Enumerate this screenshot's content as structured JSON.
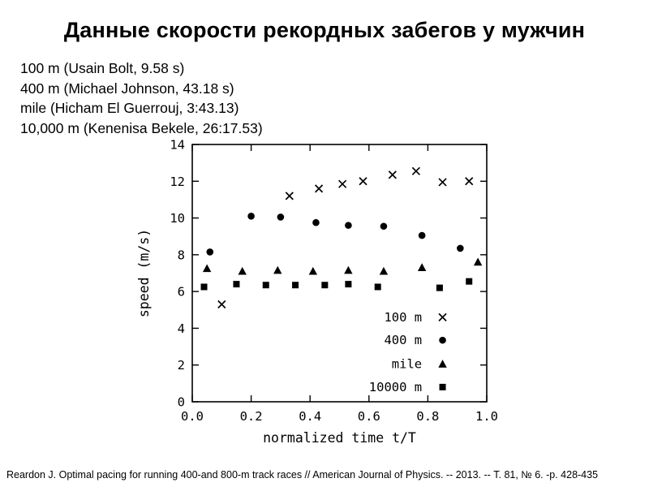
{
  "slide": {
    "title": "Данные скорости рекордных забегов у мужчин",
    "annotations": [
      "100 m (Usain Bolt, 9.58 s)",
      "400 m (Michael Johnson, 43.18 s)",
      "mile (Hicham El Guerrouj, 3:43.13)",
      "10,000 m (Kenenisa Bekele, 26:17.53)"
    ],
    "citation": "Reardon J. Optimal pacing for running 400-and 800-m track races // American Journal of Physics. -- 2013. -- Т. 81, № 6. -p. 428-435"
  },
  "chart_data": {
    "type": "scatter",
    "title": "",
    "xlabel": "normalized time t/T",
    "ylabel": "speed (m/s)",
    "xlim": [
      0.0,
      1.0
    ],
    "ylim": [
      0,
      14
    ],
    "x_ticks": [
      0.0,
      0.2,
      0.4,
      0.6,
      0.8,
      1.0
    ],
    "x_tick_labels": [
      "0.0",
      "0.2",
      "0.4",
      "0.6",
      "0.8",
      "1.0"
    ],
    "y_ticks": [
      0,
      2,
      4,
      6,
      8,
      10,
      12,
      14
    ],
    "y_tick_labels": [
      "0",
      "2",
      "4",
      "6",
      "8",
      "10",
      "12",
      "14"
    ],
    "grid": false,
    "legend_position": "inside bottom-right",
    "marker_color": "#000000",
    "axis_color": "#000000",
    "series": [
      {
        "name": "100 m",
        "marker": "x",
        "points": [
          [
            0.1,
            5.3
          ],
          [
            0.33,
            11.2
          ],
          [
            0.43,
            11.6
          ],
          [
            0.51,
            11.85
          ],
          [
            0.58,
            12.0
          ],
          [
            0.68,
            12.35
          ],
          [
            0.76,
            12.55
          ],
          [
            0.85,
            11.95
          ],
          [
            0.94,
            12.0
          ]
        ]
      },
      {
        "name": "400 m",
        "marker": "circle",
        "points": [
          [
            0.06,
            8.15
          ],
          [
            0.2,
            10.1
          ],
          [
            0.3,
            10.05
          ],
          [
            0.42,
            9.75
          ],
          [
            0.53,
            9.6
          ],
          [
            0.65,
            9.55
          ],
          [
            0.78,
            9.05
          ],
          [
            0.91,
            8.35
          ]
        ]
      },
      {
        "name": "mile",
        "marker": "triangle",
        "points": [
          [
            0.05,
            7.25
          ],
          [
            0.17,
            7.1
          ],
          [
            0.29,
            7.15
          ],
          [
            0.41,
            7.1
          ],
          [
            0.53,
            7.15
          ],
          [
            0.65,
            7.1
          ],
          [
            0.78,
            7.3
          ],
          [
            0.97,
            7.6
          ]
        ]
      },
      {
        "name": "10000 m",
        "marker": "square",
        "points": [
          [
            0.04,
            6.25
          ],
          [
            0.15,
            6.4
          ],
          [
            0.25,
            6.35
          ],
          [
            0.35,
            6.35
          ],
          [
            0.45,
            6.35
          ],
          [
            0.53,
            6.4
          ],
          [
            0.63,
            6.25
          ],
          [
            0.84,
            6.2
          ],
          [
            0.94,
            6.55
          ]
        ]
      }
    ]
  }
}
